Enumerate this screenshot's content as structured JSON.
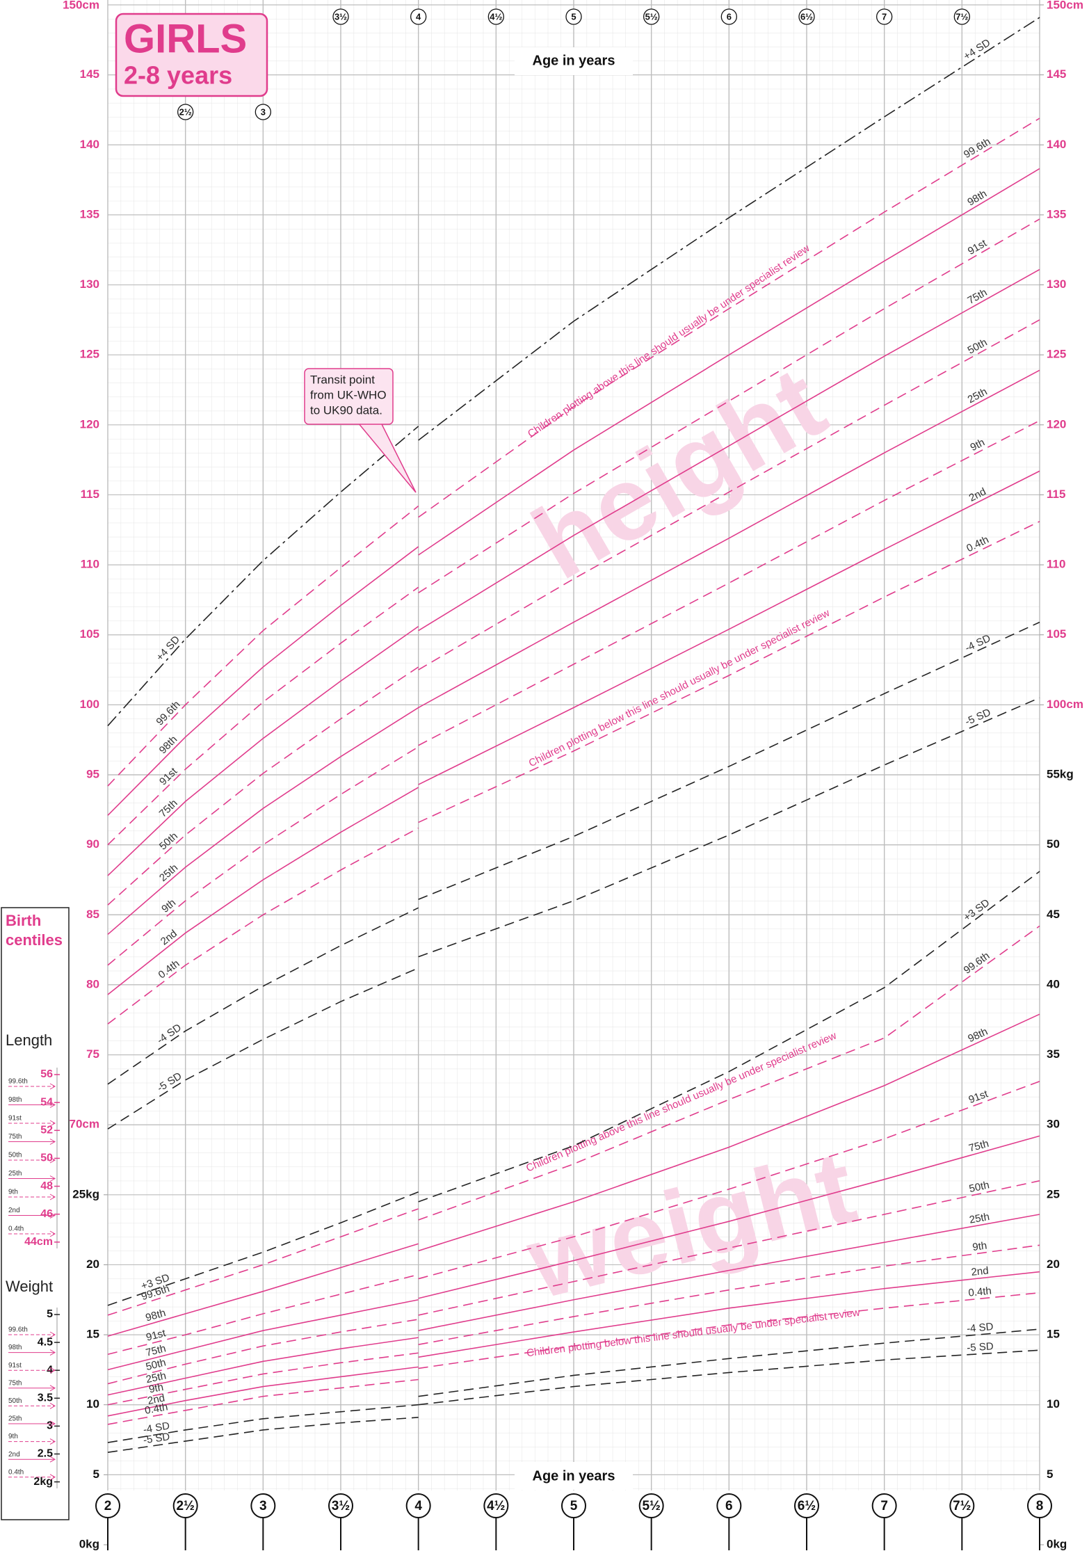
{
  "chart_data": {
    "type": "line",
    "title": "GIRLS",
    "subtitle": "2-8 years",
    "xlabel": "Age in years",
    "x": [
      2,
      2.5,
      3,
      3.5,
      4,
      4,
      5,
      6,
      7,
      8
    ],
    "xlim": [
      2,
      8
    ],
    "xticks": [
      2,
      {
        "value": 2.5,
        "label": "2½"
      },
      3,
      {
        "value": 3.5,
        "label": "3½"
      },
      4,
      {
        "value": 4.5,
        "label": "4½"
      },
      5,
      {
        "value": 5.5,
        "label": "5½"
      },
      6,
      {
        "value": 6.5,
        "label": "6½"
      },
      7,
      {
        "value": 7.5,
        "label": "7½"
      },
      8
    ],
    "ylim": [
      40,
      150
    ],
    "yticks": [
      {
        "value": 70,
        "label": "70cm"
      },
      75,
      80,
      85,
      90,
      95,
      100,
      105,
      110,
      115,
      120,
      125,
      130,
      135,
      140,
      145,
      {
        "value": 150,
        "label": "150cm"
      }
    ],
    "yticks_right": [
      {
        "value": 100,
        "label": "100cm"
      },
      105,
      110,
      115,
      120,
      125,
      130,
      135,
      140,
      145,
      {
        "value": 150,
        "label": "150cm"
      }
    ],
    "y2lim": [
      0,
      110
    ],
    "y2ticks": [
      {
        "value": 0,
        "label": "0kg"
      },
      5,
      10,
      15,
      20,
      {
        "value": 25,
        "label": "25kg"
      }
    ],
    "y2ticks_right": [
      {
        "value": 0,
        "label": "0kg"
      },
      5,
      10,
      15,
      20,
      25,
      30,
      35,
      40,
      45,
      50,
      {
        "value": 55,
        "label": "55kg"
      }
    ],
    "grid": true,
    "series": [
      {
        "name": "+4 SD",
        "color": "#222222",
        "dash": "dashdot",
        "values": [
          98.5,
          104.7,
          110.3,
          115.2,
          119.9,
          118.9,
          127.4,
          134.8,
          142.0,
          149.1
        ]
      },
      {
        "name": "99.6th",
        "color": "#e03c8c",
        "dash": "dashed",
        "values": [
          94.2,
          100.0,
          105.3,
          109.8,
          114.2,
          113.4,
          121.3,
          128.3,
          135.2,
          141.9
        ]
      },
      {
        "name": "98th",
        "color": "#e03c8c",
        "dash": "solid",
        "values": [
          92.1,
          97.7,
          102.7,
          107.1,
          111.3,
          110.7,
          118.2,
          125.0,
          131.7,
          138.3
        ]
      },
      {
        "name": "91st",
        "color": "#e03c8c",
        "dash": "dashed",
        "values": [
          90.0,
          95.4,
          100.2,
          104.4,
          108.4,
          108.0,
          115.1,
          121.7,
          128.3,
          134.7
        ]
      },
      {
        "name": "75th",
        "color": "#e03c8c",
        "dash": "solid",
        "values": [
          87.8,
          93.1,
          97.6,
          101.7,
          105.6,
          105.3,
          112.1,
          118.5,
          124.9,
          131.1
        ]
      },
      {
        "name": "50th",
        "color": "#e03c8c",
        "dash": "dashed",
        "values": [
          85.7,
          90.7,
          95.1,
          99.0,
          102.7,
          102.5,
          109.0,
          115.2,
          121.4,
          127.5
        ]
      },
      {
        "name": "25th",
        "color": "#e03c8c",
        "dash": "solid",
        "values": [
          83.6,
          88.4,
          92.6,
          96.3,
          99.8,
          99.8,
          105.9,
          111.9,
          118.0,
          123.9
        ]
      },
      {
        "name": "9th",
        "color": "#e03c8c",
        "dash": "dashed",
        "values": [
          81.4,
          86.0,
          90.0,
          93.6,
          97.0,
          97.1,
          102.9,
          108.7,
          114.6,
          120.3
        ]
      },
      {
        "name": "2nd",
        "color": "#e03c8c",
        "dash": "solid",
        "values": [
          79.3,
          83.7,
          87.5,
          90.9,
          94.1,
          94.3,
          99.8,
          105.4,
          111.1,
          116.7
        ]
      },
      {
        "name": "0.4th",
        "color": "#e03c8c",
        "dash": "dashed",
        "values": [
          77.2,
          81.4,
          85.0,
          88.2,
          91.2,
          91.6,
          96.7,
          102.1,
          107.7,
          113.1
        ]
      },
      {
        "name": "-4 SD",
        "color": "#222222",
        "dash": "dashed",
        "values": [
          72.9,
          76.7,
          79.9,
          82.8,
          85.5,
          86.1,
          90.6,
          95.6,
          100.8,
          105.9
        ]
      },
      {
        "name": "-5 SD",
        "color": "#222222",
        "dash": "dashed",
        "values": [
          69.7,
          73.2,
          76.1,
          78.8,
          81.2,
          82.0,
          86.0,
          90.7,
          95.7,
          100.5
        ]
      },
      {
        "name": "+3 SD",
        "color": "#222222",
        "dash": "dashed",
        "axis": "y2",
        "values": [
          17.1,
          19.0,
          20.9,
          23.0,
          25.2,
          24.5,
          28.5,
          33.8,
          39.8,
          48.1
        ]
      },
      {
        "name": "99.6th",
        "color": "#e03c8c",
        "dash": "dashed",
        "axis": "y2",
        "values": [
          16.4,
          18.2,
          20.0,
          22.0,
          24.0,
          23.2,
          27.2,
          31.8,
          36.2,
          44.2
        ]
      },
      {
        "name": "98th",
        "color": "#e03c8c",
        "dash": "solid",
        "axis": "y2",
        "values": [
          14.9,
          16.5,
          18.1,
          19.8,
          21.5,
          21.0,
          24.5,
          28.4,
          32.8,
          37.9
        ]
      },
      {
        "name": "91st",
        "color": "#e03c8c",
        "dash": "dashed",
        "axis": "y2",
        "values": [
          13.6,
          15.0,
          16.5,
          17.9,
          19.3,
          19.0,
          22.0,
          25.4,
          29.0,
          33.1
        ]
      },
      {
        "name": "75th",
        "color": "#e03c8c",
        "dash": "solid",
        "axis": "y2",
        "values": [
          12.5,
          13.9,
          15.3,
          16.4,
          17.5,
          17.6,
          20.3,
          23.1,
          26.1,
          29.2
        ]
      },
      {
        "name": "50th",
        "color": "#e03c8c",
        "dash": "dashed",
        "axis": "y2",
        "values": [
          11.5,
          12.9,
          14.2,
          15.2,
          16.1,
          16.4,
          18.8,
          21.2,
          23.6,
          26.0
        ]
      },
      {
        "name": "25th",
        "color": "#e03c8c",
        "dash": "solid",
        "axis": "y2",
        "values": [
          10.7,
          11.9,
          13.1,
          14.0,
          14.8,
          15.3,
          17.5,
          19.6,
          21.6,
          23.6
        ]
      },
      {
        "name": "9th",
        "color": "#e03c8c",
        "dash": "dashed",
        "axis": "y2",
        "values": [
          10.0,
          11.1,
          12.2,
          13.0,
          13.7,
          14.3,
          16.3,
          18.2,
          19.9,
          21.4
        ]
      },
      {
        "name": "2nd",
        "color": "#e03c8c",
        "dash": "solid",
        "axis": "y2",
        "values": [
          9.2,
          10.3,
          11.3,
          12.0,
          12.7,
          13.4,
          15.2,
          16.9,
          18.3,
          19.5
        ]
      },
      {
        "name": "0.4th",
        "color": "#e03c8c",
        "dash": "dashed",
        "axis": "y2",
        "values": [
          8.6,
          9.6,
          10.6,
          11.2,
          11.8,
          12.6,
          14.2,
          15.7,
          16.9,
          18.0
        ]
      },
      {
        "name": "-4 SD",
        "color": "#222222",
        "dash": "dashed",
        "axis": "y2",
        "values": [
          7.3,
          8.2,
          9.0,
          9.5,
          10.0,
          10.6,
          12.1,
          13.3,
          14.4,
          15.4
        ]
      },
      {
        "name": "-5 SD",
        "color": "#222222",
        "dash": "dashed",
        "axis": "y2",
        "values": [
          6.6,
          7.4,
          8.2,
          8.7,
          9.1,
          10.0,
          11.3,
          12.3,
          13.2,
          13.9
        ]
      }
    ],
    "callout": [
      "Transit point",
      "from UK-WHO",
      "to UK90 data."
    ],
    "review_notes": [
      "Children plotting above this line should usually be under specialist review",
      "Children plotting below this line should usually be under specialist review"
    ],
    "watermarks": [
      "height",
      "weight"
    ]
  },
  "birth_centiles": {
    "title": "Birth centiles",
    "centiles": [
      "99.6th",
      "98th",
      "91st",
      "75th",
      "50th",
      "25th",
      "9th",
      "2nd",
      "0.4th"
    ],
    "length": {
      "label": "Length",
      "ticks": [
        {
          "value": 44,
          "label": "44cm"
        },
        46,
        48,
        50,
        52,
        54,
        56
      ]
    },
    "weight": {
      "label": "Weight",
      "ticks": [
        {
          "value": 2,
          "label": "2kg"
        },
        2.5,
        3,
        3.5,
        4,
        4.5,
        5
      ]
    }
  }
}
